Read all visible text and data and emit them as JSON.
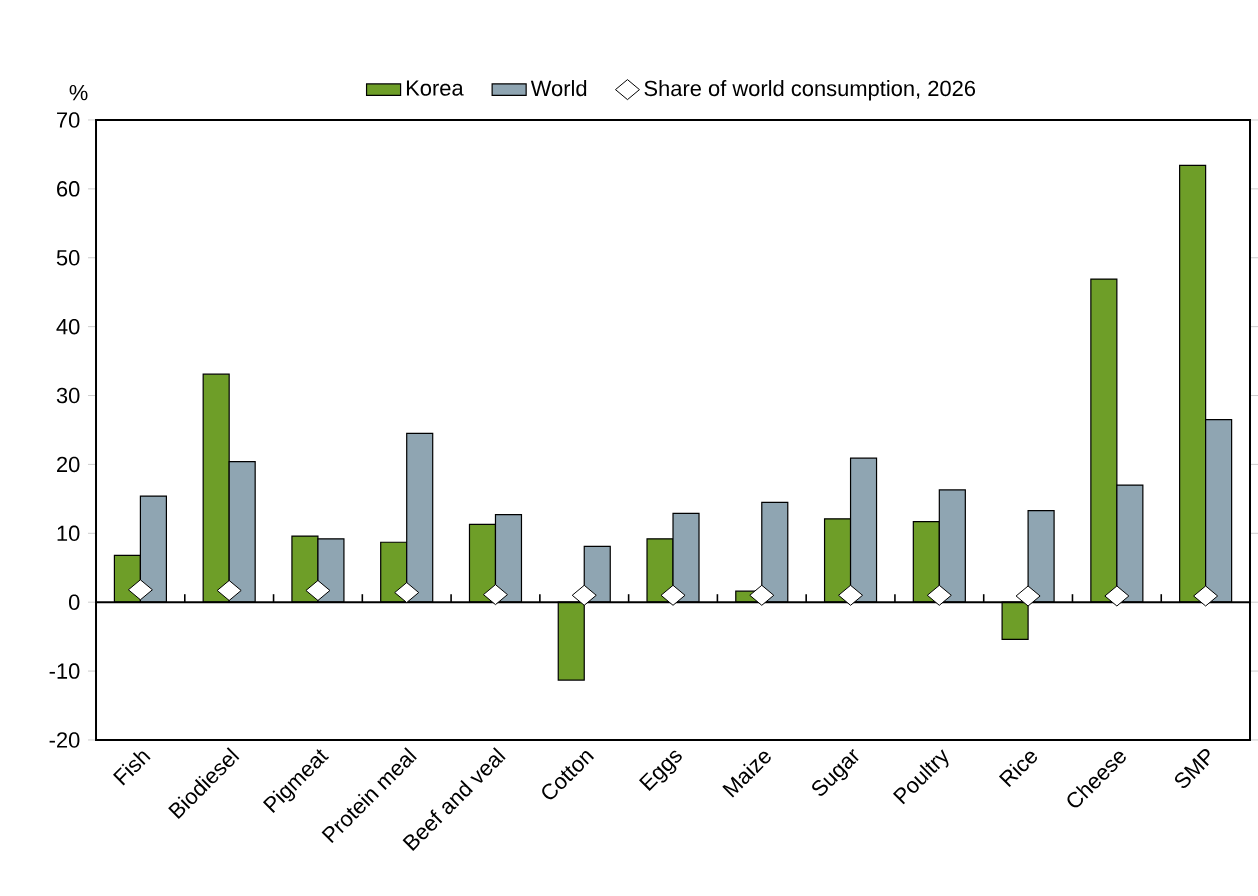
{
  "chart_data": {
    "type": "bar",
    "ylabel": "%",
    "categories": [
      "Fish",
      "Biodiesel",
      "Pigmeat",
      "Protein meal",
      "Beef and veal",
      "Cotton",
      "Eggs",
      "Maize",
      "Sugar",
      "Poultry",
      "Rice",
      "Cheese",
      "SMP"
    ],
    "series": [
      {
        "name": "Korea",
        "color": "#6e9e28",
        "values": [
          6.8,
          33.1,
          9.6,
          8.7,
          11.3,
          -11.3,
          9.2,
          1.6,
          12.1,
          11.7,
          -5.4,
          46.9,
          63.4
        ]
      },
      {
        "name": "World",
        "color": "#8fa5b2",
        "values": [
          15.4,
          20.4,
          9.2,
          24.5,
          12.7,
          8.1,
          12.9,
          14.5,
          20.9,
          16.3,
          13.3,
          17.0,
          26.5
        ]
      },
      {
        "name": "Share of world consumption, 2026",
        "type": "scatter",
        "color": "#ffffff",
        "values": [
          1.8,
          1.7,
          1.7,
          1.4,
          1.1,
          1.0,
          1.0,
          1.0,
          1.0,
          1.0,
          0.9,
          0.9,
          0.9
        ]
      }
    ],
    "marker": "diamond",
    "ylim": [
      -20,
      70
    ],
    "yticks": [
      -20,
      -10,
      0,
      10,
      20,
      30,
      40,
      50,
      60,
      70
    ],
    "legend": "top"
  }
}
